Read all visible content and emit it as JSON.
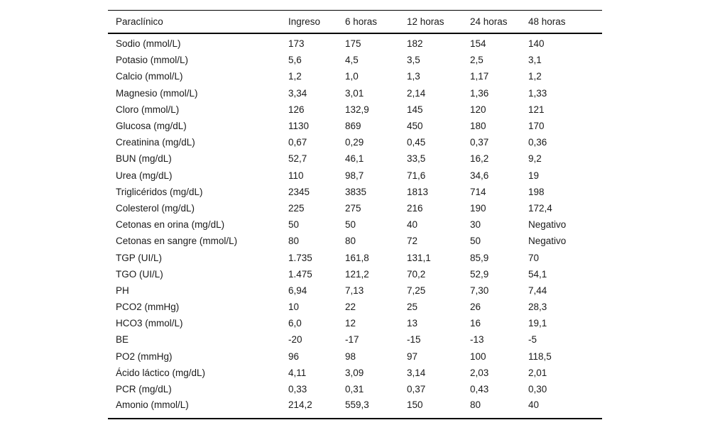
{
  "table": {
    "columns": [
      "Paraclínico",
      "Ingreso",
      "6 horas",
      "12 horas",
      "24 horas",
      "48 horas"
    ],
    "rows": [
      [
        "Sodio (mmol/L)",
        "173",
        "175",
        "182",
        "154",
        "140"
      ],
      [
        "Potasio (mmol/L)",
        "5,6",
        "4,5",
        "3,5",
        "2,5",
        "3,1"
      ],
      [
        "Calcio (mmol/L)",
        "1,2",
        "1,0",
        "1,3",
        "1,17",
        "1,2"
      ],
      [
        "Magnesio (mmol/L)",
        "3,34",
        "3,01",
        "2,14",
        "1,36",
        "1,33"
      ],
      [
        "Cloro (mmol/L)",
        "126",
        "132,9",
        "145",
        "120",
        "121"
      ],
      [
        "Glucosa (mg/dL)",
        "1130",
        "869",
        "450",
        "180",
        "170"
      ],
      [
        "Creatinina (mg/dL)",
        "0,67",
        "0,29",
        "0,45",
        "0,37",
        "0,36"
      ],
      [
        "BUN (mg/dL)",
        "52,7",
        "46,1",
        "33,5",
        "16,2",
        "9,2"
      ],
      [
        "Urea (mg/dL)",
        "110",
        "98,7",
        "71,6",
        "34,6",
        "19"
      ],
      [
        "Triglicéridos (mg/dL)",
        "2345",
        "3835",
        "1813",
        "714",
        "198"
      ],
      [
        "Colesterol (mg/dL)",
        "225",
        "275",
        "216",
        "190",
        "172,4"
      ],
      [
        "Cetonas en orina (mg/dL)",
        "50",
        "50",
        "40",
        "30",
        "Negativo"
      ],
      [
        "Cetonas en sangre (mmol/L)",
        "80",
        "80",
        "72",
        "50",
        "Negativo"
      ],
      [
        "TGP (UI/L)",
        "1.735",
        "161,8",
        "131,1",
        "85,9",
        "70"
      ],
      [
        "TGO (UI/L)",
        "1.475",
        "121,2",
        "70,2",
        "52,9",
        "54,1"
      ],
      [
        "PH",
        "6,94",
        "7,13",
        "7,25",
        "7,30",
        "7,44"
      ],
      [
        "PCO2 (mmHg)",
        "10",
        "22",
        "25",
        "26",
        "28,3"
      ],
      [
        "HCO3 (mmol/L)",
        "6,0",
        "12",
        "13",
        "16",
        "19,1"
      ],
      [
        "BE",
        "-20",
        "-17",
        "-15",
        "-13",
        "-5"
      ],
      [
        "PO2 (mmHg)",
        "96",
        "98",
        "97",
        "100",
        "118,5"
      ],
      [
        "Ácido láctico (mg/dL)",
        "4,11",
        "3,09",
        "3,14",
        "2,03",
        "2,01"
      ],
      [
        "PCR (mg/dL)",
        "0,33",
        "0,31",
        "0,37",
        "0,43",
        "0,30"
      ],
      [
        "Amonio (mmol/L)",
        "214,2",
        "559,3",
        "150",
        "80",
        "40"
      ]
    ],
    "colors": {
      "text": "#1a1a1a",
      "rule": "#000000",
      "background": "#ffffff"
    }
  },
  "chart_data": {
    "type": "table",
    "title": "",
    "categories": [
      "Ingreso",
      "6 horas",
      "12 horas",
      "24 horas",
      "48 horas"
    ],
    "series": [
      {
        "name": "Sodio (mmol/L)",
        "values": [
          173,
          175,
          182,
          154,
          140
        ]
      },
      {
        "name": "Potasio (mmol/L)",
        "values": [
          5.6,
          4.5,
          3.5,
          2.5,
          3.1
        ]
      },
      {
        "name": "Calcio (mmol/L)",
        "values": [
          1.2,
          1.0,
          1.3,
          1.17,
          1.2
        ]
      },
      {
        "name": "Magnesio (mmol/L)",
        "values": [
          3.34,
          3.01,
          2.14,
          1.36,
          1.33
        ]
      },
      {
        "name": "Cloro (mmol/L)",
        "values": [
          126,
          132.9,
          145,
          120,
          121
        ]
      },
      {
        "name": "Glucosa (mg/dL)",
        "values": [
          1130,
          869,
          450,
          180,
          170
        ]
      },
      {
        "name": "Creatinina (mg/dL)",
        "values": [
          0.67,
          0.29,
          0.45,
          0.37,
          0.36
        ]
      },
      {
        "name": "BUN (mg/dL)",
        "values": [
          52.7,
          46.1,
          33.5,
          16.2,
          9.2
        ]
      },
      {
        "name": "Urea (mg/dL)",
        "values": [
          110,
          98.7,
          71.6,
          34.6,
          19
        ]
      },
      {
        "name": "Triglicéridos (mg/dL)",
        "values": [
          2345,
          3835,
          1813,
          714,
          198
        ]
      },
      {
        "name": "Colesterol (mg/dL)",
        "values": [
          225,
          275,
          216,
          190,
          172.4
        ]
      },
      {
        "name": "Cetonas en orina (mg/dL)",
        "values": [
          50,
          50,
          40,
          30,
          "Negativo"
        ]
      },
      {
        "name": "Cetonas en sangre (mmol/L)",
        "values": [
          80,
          80,
          72,
          50,
          "Negativo"
        ]
      },
      {
        "name": "TGP (UI/L)",
        "values": [
          1735,
          161.8,
          131.1,
          85.9,
          70
        ]
      },
      {
        "name": "TGO (UI/L)",
        "values": [
          1475,
          121.2,
          70.2,
          52.9,
          54.1
        ]
      },
      {
        "name": "PH",
        "values": [
          6.94,
          7.13,
          7.25,
          7.3,
          7.44
        ]
      },
      {
        "name": "PCO2 (mmHg)",
        "values": [
          10,
          22,
          25,
          26,
          28.3
        ]
      },
      {
        "name": "HCO3 (mmol/L)",
        "values": [
          6.0,
          12,
          13,
          16,
          19.1
        ]
      },
      {
        "name": "BE",
        "values": [
          -20,
          -17,
          -15,
          -13,
          -5
        ]
      },
      {
        "name": "PO2 (mmHg)",
        "values": [
          96,
          98,
          97,
          100,
          118.5
        ]
      },
      {
        "name": "Ácido láctico (mg/dL)",
        "values": [
          4.11,
          3.09,
          3.14,
          2.03,
          2.01
        ]
      },
      {
        "name": "PCR (mg/dL)",
        "values": [
          0.33,
          0.31,
          0.37,
          0.43,
          0.3
        ]
      },
      {
        "name": "Amonio (mmol/L)",
        "values": [
          214.2,
          559.3,
          150,
          80,
          40
        ]
      }
    ]
  }
}
